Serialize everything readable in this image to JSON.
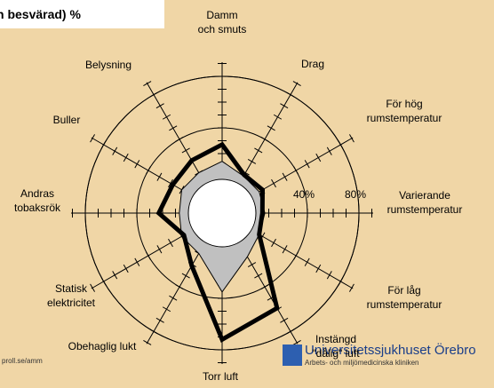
{
  "chart_data": {
    "type": "radar",
    "title": "n besvärad) %",
    "categories": [
      "Damm\noch smuts",
      "Drag",
      "För hög\nrumstemperatur",
      "Varierande\nrumstemperatur",
      "För låg\nrumstemperatur",
      "Instängd\n\"dålig\" luft",
      "Torr luft",
      "Obehaglig lukt",
      "Statisk\nelektricitet",
      "Andras\ntobaksrök",
      "Buller",
      "Belysning"
    ],
    "series": [
      {
        "color": "#c0c0c0",
        "values": [
          14,
          7,
          7,
          7,
          7,
          13,
          35,
          10,
          10,
          7,
          10,
          10
        ]
      },
      {
        "color": "#000000",
        "values": [
          27,
          8,
          10,
          5,
          7,
          59,
          72,
          21,
          8,
          23,
          18,
          21
        ]
      }
    ],
    "rlim": [
      0,
      80
    ],
    "rticks": [
      {
        "value": 40,
        "label": "40%"
      },
      {
        "value": 80,
        "label": "80%"
      }
    ],
    "minor_rticks": [
      10,
      20,
      30,
      50,
      60,
      70,
      90
    ]
  },
  "footer": {
    "url": "proll.se/amm",
    "org": "Universitetssjukhuset Örebro",
    "dept": "Arbets- och miljömedicinska kliniken"
  }
}
